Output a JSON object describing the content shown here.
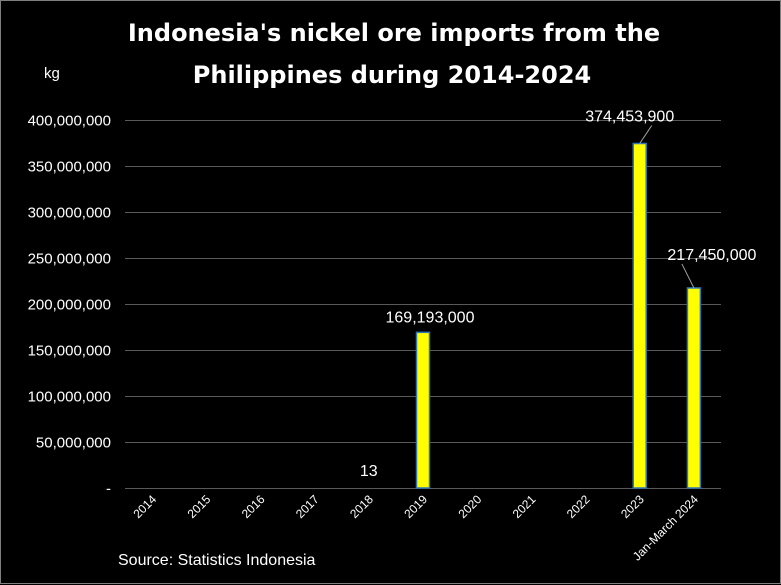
{
  "chart_data": {
    "type": "bar",
    "title_lines": [
      "Indonesia's nickel ore imports from the",
      "Philippines during 2014-2024"
    ],
    "unit_label": "kg",
    "categories": [
      "2014",
      "2015",
      "2016",
      "2017",
      "2018",
      "2019",
      "2020",
      "2021",
      "2022",
      "2023",
      "Jan-March 2024"
    ],
    "values": [
      0,
      0,
      0,
      0,
      13,
      169193000,
      0,
      0,
      0,
      374453900,
      217450000
    ],
    "data_labels": [
      "",
      "",
      "",
      "",
      "13",
      "169,193,000",
      "",
      "",
      "",
      "374,453,900",
      "217,450,000"
    ],
    "ylim": [
      0,
      400000000
    ],
    "yticks": [
      0,
      50000000,
      100000000,
      150000000,
      200000000,
      250000000,
      300000000,
      350000000,
      400000000
    ],
    "ytick_labels": [
      "-",
      "50,000,000",
      "100,000,000",
      "150,000,000",
      "200,000,000",
      "250,000,000",
      "300,000,000",
      "350,000,000",
      "400,000,000"
    ],
    "grid": true,
    "bar_color": "#ffff00",
    "bar_edge_color": "#2e75b6",
    "source": "Source: Statistics Indonesia"
  }
}
